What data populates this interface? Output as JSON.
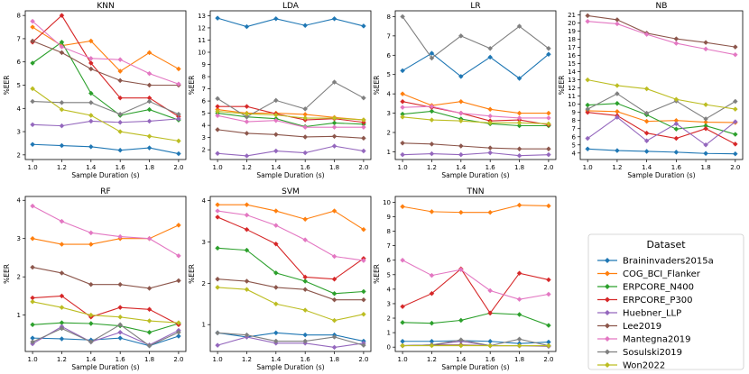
{
  "chart_data": [
    {
      "type": "line",
      "title": "KNN",
      "xlabel": "Sample Duration (s)",
      "ylabel": "%EER",
      "x": [
        1.0,
        1.2,
        1.4,
        1.6,
        1.8,
        2.0
      ],
      "xticks": [
        "1.0",
        "1.2",
        "1.4",
        "1.6",
        "1.8",
        "2.0"
      ],
      "ylim": [
        1.8,
        8.2
      ],
      "yticks": [
        2,
        3,
        4,
        5,
        6,
        7,
        8
      ],
      "series": [
        {
          "name": "Braininvaders2015a",
          "values": [
            2.45,
            2.4,
            2.35,
            2.2,
            2.3,
            2.05
          ]
        },
        {
          "name": "COG_BCI_Flanker",
          "values": [
            7.5,
            6.7,
            6.9,
            5.6,
            6.4,
            5.7
          ]
        },
        {
          "name": "ERPCORE_N400",
          "values": [
            5.95,
            6.85,
            4.65,
            3.7,
            3.95,
            3.5
          ]
        },
        {
          "name": "ERPCORE_P300",
          "values": [
            6.85,
            8.0,
            5.95,
            4.45,
            4.45,
            3.65
          ]
        },
        {
          "name": "Huebner_LLP",
          "values": [
            3.3,
            3.25,
            3.45,
            3.4,
            3.45,
            3.55
          ]
        },
        {
          "name": "Lee2019",
          "values": [
            6.9,
            6.4,
            5.7,
            5.2,
            5.0,
            5.0
          ]
        },
        {
          "name": "Mantegna2019",
          "values": [
            7.75,
            6.65,
            6.15,
            6.1,
            5.5,
            5.05
          ]
        },
        {
          "name": "Sosulski2019",
          "values": [
            4.3,
            4.25,
            4.25,
            3.75,
            4.3,
            3.75
          ]
        },
        {
          "name": "Won2022",
          "values": [
            4.85,
            3.95,
            3.7,
            3.0,
            2.8,
            2.6
          ]
        }
      ]
    },
    {
      "type": "line",
      "title": "LDA",
      "xlabel": "Sample Duration (s)",
      "ylabel": "%EER",
      "x": [
        1.0,
        1.2,
        1.4,
        1.6,
        1.8,
        2.0
      ],
      "xticks": [
        "1.0",
        "1.2",
        "1.4",
        "1.6",
        "1.8",
        "2.0"
      ],
      "ylim": [
        1.2,
        13.4
      ],
      "yticks": [
        2,
        3,
        4,
        5,
        6,
        7,
        8,
        9,
        10,
        11,
        12,
        13
      ],
      "series": [
        {
          "name": "Braininvaders2015a",
          "values": [
            12.8,
            12.1,
            12.75,
            12.2,
            12.75,
            12.15
          ]
        },
        {
          "name": "COG_BCI_Flanker",
          "values": [
            5.3,
            5.0,
            5.0,
            4.9,
            4.65,
            4.45
          ]
        },
        {
          "name": "ERPCORE_N400",
          "values": [
            5.0,
            4.7,
            4.55,
            3.9,
            4.2,
            4.1
          ]
        },
        {
          "name": "ERPCORE_P300",
          "values": [
            5.55,
            5.55,
            4.95,
            4.45,
            4.55,
            4.25
          ]
        },
        {
          "name": "Huebner_LLP",
          "values": [
            1.7,
            1.5,
            1.9,
            1.75,
            2.3,
            1.9
          ]
        },
        {
          "name": "Lee2019",
          "values": [
            3.65,
            3.35,
            3.25,
            3.05,
            3.1,
            2.95
          ]
        },
        {
          "name": "Mantegna2019",
          "values": [
            4.8,
            4.3,
            4.4,
            3.85,
            3.85,
            3.85
          ]
        },
        {
          "name": "Sosulski2019",
          "values": [
            6.2,
            4.7,
            6.05,
            5.35,
            7.55,
            6.25
          ]
        },
        {
          "name": "Won2022",
          "values": [
            5.15,
            4.95,
            4.85,
            4.6,
            4.6,
            4.45
          ]
        }
      ]
    },
    {
      "type": "line",
      "title": "LR",
      "xlabel": "Sample Duration (s)",
      "ylabel": "%EER",
      "x": [
        1.0,
        1.2,
        1.4,
        1.6,
        1.8,
        2.0
      ],
      "xticks": [
        "1.0",
        "1.2",
        "1.4",
        "1.6",
        "1.8",
        "2.0"
      ],
      "ylim": [
        0.6,
        8.3
      ],
      "yticks": [
        1,
        2,
        3,
        4,
        5,
        6,
        7,
        8
      ],
      "series": [
        {
          "name": "Braininvaders2015a",
          "values": [
            5.2,
            6.1,
            4.9,
            5.9,
            4.8,
            6.05
          ]
        },
        {
          "name": "COG_BCI_Flanker",
          "values": [
            4.0,
            3.4,
            3.6,
            3.2,
            3.0,
            3.0
          ]
        },
        {
          "name": "ERPCORE_N400",
          "values": [
            2.95,
            3.1,
            2.7,
            2.45,
            2.35,
            2.35
          ]
        },
        {
          "name": "ERPCORE_P300",
          "values": [
            3.6,
            3.3,
            3.0,
            2.6,
            2.65,
            2.4
          ]
        },
        {
          "name": "Huebner_LLP",
          "values": [
            0.85,
            0.9,
            0.85,
            0.95,
            0.8,
            0.85
          ]
        },
        {
          "name": "Lee2019",
          "values": [
            1.45,
            1.4,
            1.3,
            1.2,
            1.15,
            1.15
          ]
        },
        {
          "name": "Mantegna2019",
          "values": [
            3.3,
            3.35,
            3.0,
            2.85,
            2.75,
            2.75
          ]
        },
        {
          "name": "Sosulski2019",
          "values": [
            8.0,
            5.85,
            7.0,
            6.35,
            7.5,
            6.35
          ]
        },
        {
          "name": "Won2022",
          "values": [
            2.8,
            2.65,
            2.6,
            2.5,
            2.5,
            2.45
          ]
        }
      ]
    },
    {
      "type": "line",
      "title": "NB",
      "xlabel": "Sample Duration (s)",
      "ylabel": "%EER",
      "x": [
        1.0,
        1.2,
        1.4,
        1.6,
        1.8,
        2.0
      ],
      "xticks": [
        "1.0",
        "1.2",
        "1.4",
        "1.6",
        "1.8",
        "2.0"
      ],
      "ylim": [
        3.2,
        21.5
      ],
      "yticks": [
        4,
        5,
        6,
        7,
        8,
        9,
        10,
        11,
        12,
        13,
        14,
        15,
        16,
        17,
        18,
        19,
        20,
        21
      ],
      "series": [
        {
          "name": "Braininvaders2015a",
          "values": [
            4.5,
            4.3,
            4.2,
            4.1,
            3.95,
            3.9
          ]
        },
        {
          "name": "COG_BCI_Flanker",
          "values": [
            9.2,
            9.1,
            7.9,
            8.0,
            7.8,
            7.75
          ]
        },
        {
          "name": "ERPCORE_N400",
          "values": [
            9.9,
            10.1,
            8.7,
            6.95,
            7.35,
            6.3
          ]
        },
        {
          "name": "ERPCORE_P300",
          "values": [
            9.0,
            8.6,
            6.45,
            5.8,
            7.0,
            5.1
          ]
        },
        {
          "name": "Huebner_LLP",
          "values": [
            5.8,
            8.4,
            5.5,
            7.6,
            5.0,
            7.85
          ]
        },
        {
          "name": "Lee2019",
          "values": [
            20.9,
            20.4,
            18.75,
            18.05,
            17.6,
            17.05
          ]
        },
        {
          "name": "Mantegna2019",
          "values": [
            20.2,
            19.9,
            18.6,
            17.5,
            16.8,
            16.1
          ]
        },
        {
          "name": "Sosulski2019",
          "values": [
            9.4,
            11.3,
            8.9,
            10.4,
            8.2,
            10.35
          ]
        },
        {
          "name": "Won2022",
          "values": [
            13.0,
            12.3,
            11.9,
            10.6,
            9.95,
            9.4
          ]
        }
      ]
    },
    {
      "type": "line",
      "title": "RF",
      "xlabel": "Sample Duration (s)",
      "ylabel": "%EER",
      "x": [
        1.0,
        1.2,
        1.4,
        1.6,
        1.8,
        2.0
      ],
      "xticks": [
        "1.0",
        "1.2",
        "1.4",
        "1.6",
        "1.8",
        "2.0"
      ],
      "ylim": [
        0.05,
        4.1
      ],
      "yticks": [
        1,
        2,
        3,
        4
      ],
      "series": [
        {
          "name": "Braininvaders2015a",
          "values": [
            0.4,
            0.38,
            0.35,
            0.4,
            0.2,
            0.45
          ]
        },
        {
          "name": "COG_BCI_Flanker",
          "values": [
            3.0,
            2.85,
            2.85,
            3.0,
            3.0,
            3.35
          ]
        },
        {
          "name": "ERPCORE_N400",
          "values": [
            0.75,
            0.8,
            0.78,
            0.72,
            0.55,
            0.78
          ]
        },
        {
          "name": "ERPCORE_P300",
          "values": [
            1.45,
            1.5,
            0.95,
            1.2,
            1.15,
            0.75
          ]
        },
        {
          "name": "Huebner_LLP",
          "values": [
            0.25,
            0.7,
            0.3,
            0.55,
            0.22,
            0.6
          ]
        },
        {
          "name": "Lee2019",
          "values": [
            2.25,
            2.1,
            1.8,
            1.8,
            1.7,
            1.9
          ]
        },
        {
          "name": "Mantegna2019",
          "values": [
            3.85,
            3.45,
            3.15,
            3.05,
            3.0,
            2.55
          ]
        },
        {
          "name": "Sosulski2019",
          "values": [
            0.3,
            0.65,
            0.3,
            0.75,
            0.2,
            0.55
          ]
        },
        {
          "name": "Won2022",
          "values": [
            1.35,
            1.2,
            1.0,
            0.95,
            0.85,
            0.8
          ]
        }
      ]
    },
    {
      "type": "line",
      "title": "SVM",
      "xlabel": "Sample Duration (s)",
      "ylabel": "%EER",
      "x": [
        1.0,
        1.2,
        1.4,
        1.6,
        1.8,
        2.0
      ],
      "xticks": [
        "1.0",
        "1.2",
        "1.4",
        "1.6",
        "1.8",
        "2.0"
      ],
      "ylim": [
        0.35,
        4.1
      ],
      "yticks": [
        1,
        2,
        3,
        4
      ],
      "series": [
        {
          "name": "Braininvaders2015a",
          "values": [
            0.8,
            0.7,
            0.8,
            0.75,
            0.75,
            0.6
          ]
        },
        {
          "name": "COG_BCI_Flanker",
          "values": [
            3.9,
            3.9,
            3.75,
            3.55,
            3.75,
            3.3
          ]
        },
        {
          "name": "ERPCORE_N400",
          "values": [
            2.85,
            2.8,
            2.25,
            2.05,
            1.75,
            1.8
          ]
        },
        {
          "name": "ERPCORE_P300",
          "values": [
            3.6,
            3.3,
            2.95,
            2.15,
            2.1,
            2.6
          ]
        },
        {
          "name": "Huebner_LLP",
          "values": [
            0.5,
            0.7,
            0.55,
            0.55,
            0.45,
            0.55
          ]
        },
        {
          "name": "Lee2019",
          "values": [
            2.1,
            2.05,
            1.9,
            1.85,
            1.6,
            1.6
          ]
        },
        {
          "name": "Mantegna2019",
          "values": [
            3.75,
            3.65,
            3.4,
            3.05,
            2.65,
            2.55
          ]
        },
        {
          "name": "Sosulski2019",
          "values": [
            0.8,
            0.75,
            0.6,
            0.6,
            0.7,
            0.5
          ]
        },
        {
          "name": "Won2022",
          "values": [
            1.9,
            1.85,
            1.5,
            1.35,
            1.1,
            1.25
          ]
        }
      ]
    },
    {
      "type": "line",
      "title": "TNN",
      "xlabel": "Sample Duration (s)",
      "ylabel": "%EER",
      "x": [
        1.0,
        1.2,
        1.4,
        1.6,
        1.8,
        2.0
      ],
      "xticks": [
        "1.0",
        "1.2",
        "1.4",
        "1.6",
        "1.8",
        "2.0"
      ],
      "ylim": [
        -0.3,
        10.4
      ],
      "yticks": [
        0,
        1,
        2,
        3,
        4,
        5,
        6,
        7,
        8,
        9,
        10
      ],
      "series": [
        {
          "name": "Braininvaders2015a",
          "values": [
            0.4,
            0.4,
            0.45,
            0.4,
            0.25,
            0.35
          ]
        },
        {
          "name": "COG_BCI_Flanker",
          "values": [
            9.7,
            9.35,
            9.3,
            9.3,
            9.8,
            9.75
          ]
        },
        {
          "name": "ERPCORE_N400",
          "values": [
            1.7,
            1.65,
            1.85,
            2.35,
            2.25,
            1.5
          ]
        },
        {
          "name": "ERPCORE_P300",
          "values": [
            2.8,
            3.7,
            5.4,
            2.35,
            5.1,
            4.65
          ]
        },
        {
          "name": "Huebner_LLP",
          "values": [
            0.1,
            0.15,
            0.4,
            0.1,
            0.1,
            0.05
          ]
        },
        {
          "name": "Lee2019",
          "values": [
            0.1,
            0.15,
            0.15,
            0.1,
            0.1,
            0.1
          ]
        },
        {
          "name": "Mantegna2019",
          "values": [
            6.0,
            4.95,
            5.35,
            3.9,
            3.3,
            3.65
          ]
        },
        {
          "name": "Sosulski2019",
          "values": [
            0.1,
            0.15,
            0.5,
            0.1,
            0.55,
            0.1
          ]
        },
        {
          "name": "Won2022",
          "values": [
            0.1,
            0.1,
            0.1,
            0.1,
            0.1,
            0.1
          ]
        }
      ]
    }
  ],
  "legend": {
    "title": "Dataset",
    "entries": [
      {
        "label": "Braininvaders2015a",
        "color": "#1f77b4"
      },
      {
        "label": "COG_BCI_Flanker",
        "color": "#ff7f0e"
      },
      {
        "label": "ERPCORE_N400",
        "color": "#2ca02c"
      },
      {
        "label": "ERPCORE_P300",
        "color": "#d62728"
      },
      {
        "label": "Huebner_LLP",
        "color": "#9467bd"
      },
      {
        "label": "Lee2019",
        "color": "#8c564b"
      },
      {
        "label": "Mantegna2019",
        "color": "#e377c2"
      },
      {
        "label": "Sosulski2019",
        "color": "#7f7f7f"
      },
      {
        "label": "Won2022",
        "color": "#bcbd22"
      }
    ]
  }
}
